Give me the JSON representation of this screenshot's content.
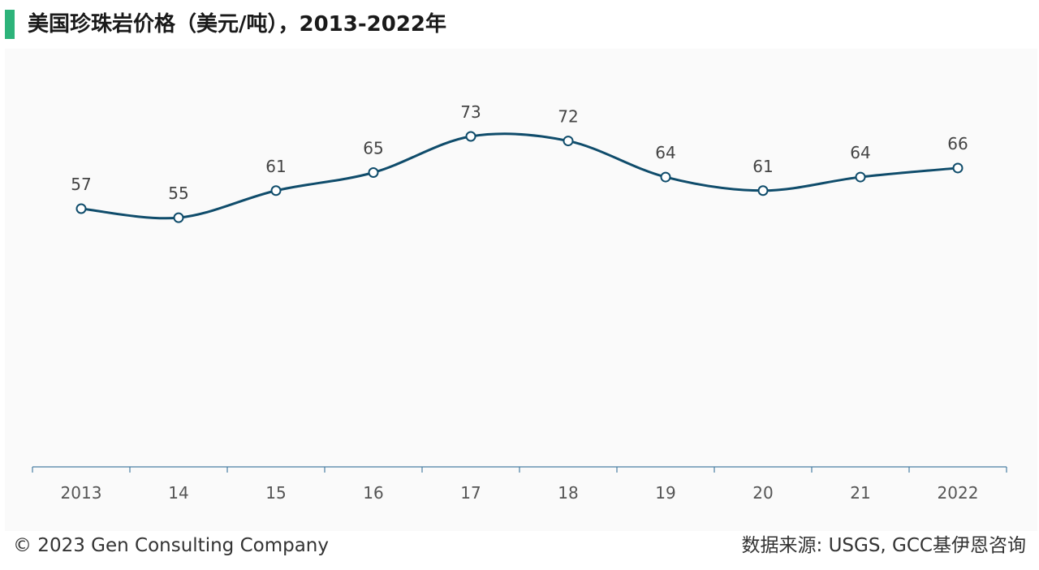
{
  "title": "美国珍珠岩价格（美元/吨），2013-2022年",
  "footer": {
    "copyright": "© 2023 Gen Consulting Company",
    "source": "数据来源: USGS, GCC基伊恩咨询"
  },
  "colors": {
    "accent": "#2db37a",
    "line": "#0f4c6b",
    "axis": "#4a7fa3",
    "label": "#444444",
    "tick_label": "#555555"
  },
  "chart_data": {
    "type": "line",
    "title": "美国珍珠岩价格（美元/吨），2013-2022年",
    "categories": [
      "2013",
      "14",
      "15",
      "16",
      "17",
      "18",
      "19",
      "20",
      "21",
      "2022"
    ],
    "series": [
      {
        "values": [
          57,
          55,
          61,
          65,
          73,
          72,
          64,
          61,
          64,
          66
        ]
      }
    ],
    "xlabel": "",
    "ylabel": "",
    "ylim": [
      0,
      80
    ],
    "grid": false,
    "legend": "none",
    "smooth": true,
    "data_labels": true
  }
}
